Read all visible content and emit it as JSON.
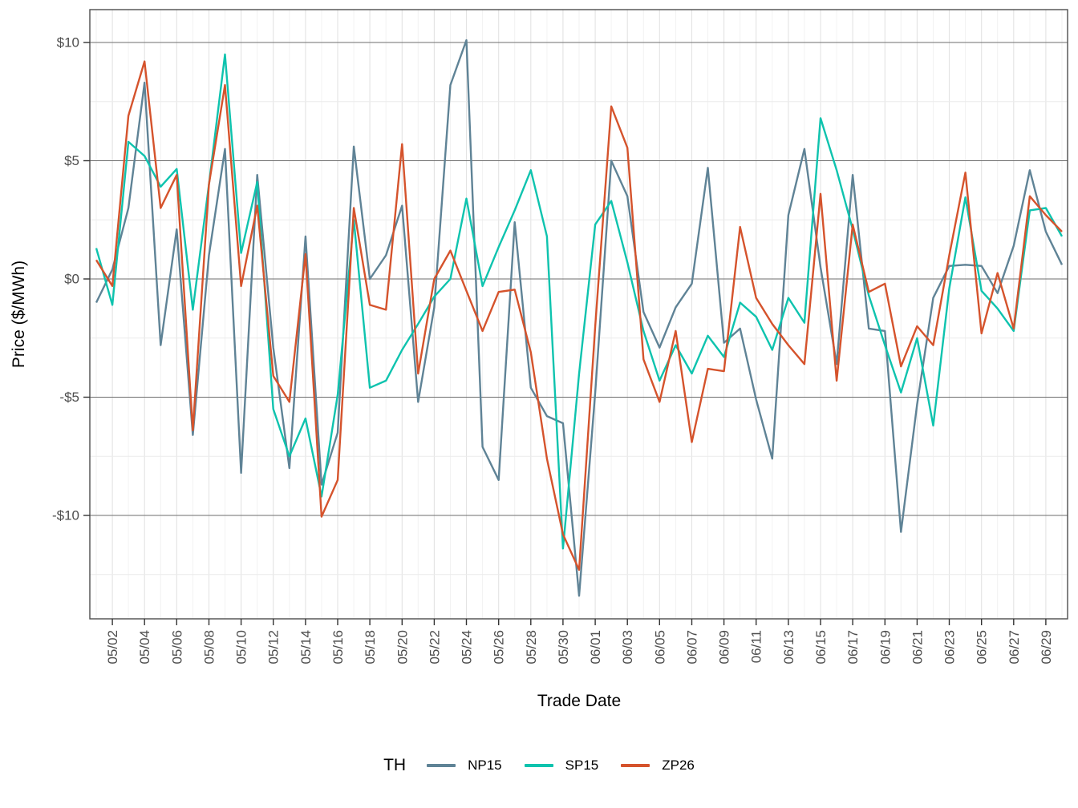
{
  "chart_data": {
    "type": "line",
    "xlabel": "Trade Date",
    "ylabel": "Price ($/MWh)",
    "legend_title": "TH",
    "legend_position": "bottom",
    "grid": "on",
    "x_is_dates": true,
    "ylim": [
      -14.4,
      11.4
    ],
    "y_major_ticks": [
      {
        "label": "$10",
        "value": 10
      },
      {
        "label": "$5",
        "value": 5
      },
      {
        "label": "$0",
        "value": 0
      },
      {
        "label": "-$5",
        "value": -5
      },
      {
        "label": "-$10",
        "value": -10
      }
    ],
    "y_minor_ticks": [
      7.5,
      2.5,
      -2.5,
      -7.5,
      -12.5
    ],
    "x_tick_labels": [
      "05/02",
      "05/04",
      "05/06",
      "05/08",
      "05/10",
      "05/12",
      "05/14",
      "05/16",
      "05/18",
      "05/20",
      "05/22",
      "05/24",
      "05/26",
      "05/28",
      "05/30",
      "06/01",
      "06/03",
      "06/05",
      "06/07",
      "06/09",
      "06/11",
      "06/13",
      "06/15",
      "06/17",
      "06/19",
      "06/21",
      "06/23",
      "06/25",
      "06/27",
      "06/29"
    ],
    "x": [
      "05/01",
      "05/02",
      "05/03",
      "05/04",
      "05/05",
      "05/06",
      "05/07",
      "05/08",
      "05/09",
      "05/10",
      "05/11",
      "05/12",
      "05/13",
      "05/14",
      "05/15",
      "05/16",
      "05/17",
      "05/18",
      "05/19",
      "05/20",
      "05/21",
      "05/22",
      "05/23",
      "05/24",
      "05/25",
      "05/26",
      "05/27",
      "05/28",
      "05/29",
      "05/30",
      "05/31",
      "06/01",
      "06/02",
      "06/03",
      "06/04",
      "06/05",
      "06/06",
      "06/07",
      "06/08",
      "06/09",
      "06/10",
      "06/11",
      "06/12",
      "06/13",
      "06/14",
      "06/15",
      "06/16",
      "06/17",
      "06/18",
      "06/19",
      "06/20",
      "06/21",
      "06/22",
      "06/23",
      "06/24",
      "06/25",
      "06/26",
      "06/27",
      "06/28",
      "06/29",
      "06/30"
    ],
    "series": [
      {
        "name": "NP15",
        "color": "#5f8396",
        "values": [
          -1.0,
          0.4,
          3.0,
          8.3,
          -2.8,
          2.1,
          -6.6,
          1.0,
          5.5,
          -8.2,
          4.4,
          -2.9,
          -8.0,
          1.8,
          -8.7,
          -6.5,
          5.6,
          0.0,
          1.0,
          3.1,
          -5.2,
          -1.2,
          8.2,
          10.1,
          -7.1,
          -8.5,
          2.4,
          -4.6,
          -5.8,
          -6.1,
          -13.4,
          -4.8,
          5.0,
          3.5,
          -1.4,
          -2.9,
          -1.2,
          -0.2,
          4.7,
          -2.7,
          -2.1,
          -5.1,
          -7.6,
          2.7,
          5.5,
          0.5,
          -3.6,
          4.4,
          -2.1,
          -2.2,
          -10.7,
          -5.3,
          -0.8,
          0.55,
          0.6,
          0.55,
          -0.6,
          1.4,
          4.6,
          2.0,
          0.6
        ]
      },
      {
        "name": "SP15",
        "color": "#0ec3ae",
        "values": [
          1.3,
          -1.1,
          5.8,
          5.2,
          3.9,
          4.65,
          -1.3,
          4.0,
          9.5,
          1.1,
          4.1,
          -5.5,
          -7.5,
          -5.9,
          -9.2,
          -4.9,
          2.5,
          -4.6,
          -4.3,
          -3.0,
          -1.9,
          -0.75,
          0.0,
          3.4,
          -0.3,
          1.35,
          2.9,
          4.6,
          1.8,
          -11.4,
          -4.0,
          2.3,
          3.3,
          0.7,
          -2.2,
          -4.3,
          -2.8,
          -4.0,
          -2.4,
          -3.3,
          -1.0,
          -1.6,
          -3.0,
          -0.8,
          -1.85,
          6.8,
          4.6,
          2.1,
          -0.7,
          -2.8,
          -4.8,
          -2.5,
          -6.2,
          -0.4,
          3.45,
          -0.5,
          -1.25,
          -2.2,
          2.9,
          3.0,
          1.8
        ]
      },
      {
        "name": "ZP26",
        "color": "#d5532c",
        "values": [
          0.8,
          -0.3,
          6.9,
          9.2,
          3.0,
          4.4,
          -6.4,
          4.0,
          8.2,
          -0.3,
          3.1,
          -4.1,
          -5.2,
          1.05,
          -10.05,
          -8.5,
          3.0,
          -1.1,
          -1.3,
          5.7,
          -4.0,
          0.0,
          1.2,
          -0.5,
          -2.2,
          -0.55,
          -0.45,
          -3.1,
          -7.6,
          -10.8,
          -12.3,
          -2.0,
          7.3,
          5.55,
          -3.4,
          -5.2,
          -2.2,
          -6.9,
          -3.8,
          -3.9,
          2.2,
          -0.8,
          -1.9,
          -2.8,
          -3.6,
          3.6,
          -4.3,
          2.3,
          -0.55,
          -0.2,
          -3.7,
          -2.0,
          -2.8,
          1.0,
          4.5,
          -2.3,
          0.25,
          -2.1,
          3.5,
          2.7,
          2.0
        ]
      }
    ],
    "style": {
      "panel_border_color": "#4d4d4d",
      "grid_major_y_color": "#6e6e6e",
      "grid_minor_y_color": "#ebebeb",
      "grid_major_x_color": "#e3e3e3",
      "grid_minor_x_color": "#f2f2f2",
      "tick_color": "#333333",
      "tick_label_color": "#4d4d4d",
      "axis_title_color": "#000000",
      "line_width": 2.4
    }
  }
}
